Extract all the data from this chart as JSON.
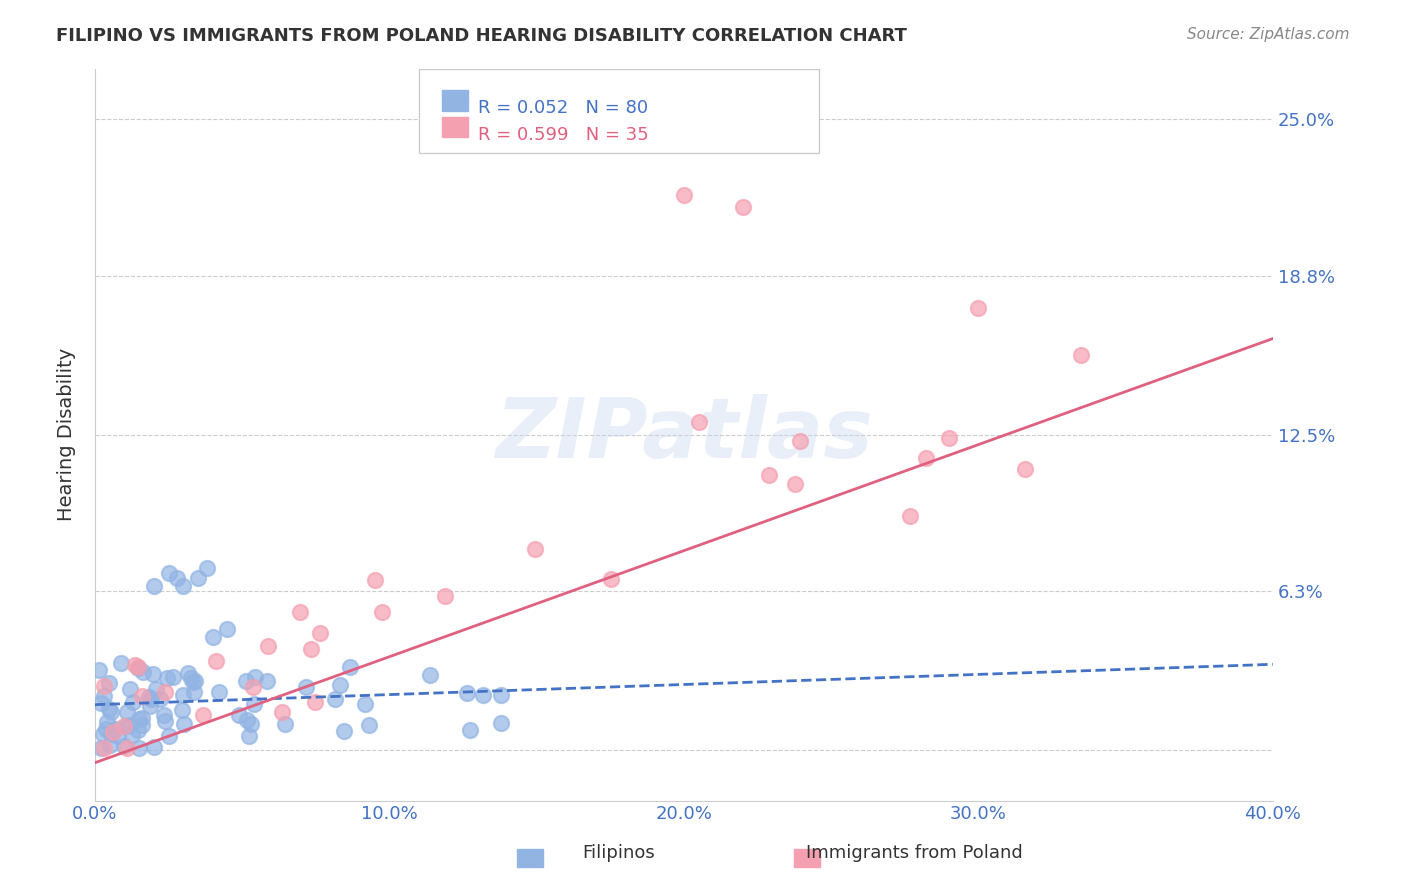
{
  "title": "FILIPINO VS IMMIGRANTS FROM POLAND HEARING DISABILITY CORRELATION CHART",
  "source": "Source: ZipAtlas.com",
  "ylabel": "Hearing Disability",
  "xlabel": "",
  "xlim": [
    0.0,
    40.0
  ],
  "ylim": [
    -2.0,
    27.0
  ],
  "ytick_vals": [
    0.0,
    6.3,
    12.5,
    18.8,
    25.0
  ],
  "ytick_labels": [
    "",
    "6.3%",
    "12.5%",
    "18.8%",
    "25.0%"
  ],
  "xticks": [
    0.0,
    10.0,
    20.0,
    30.0,
    40.0
  ],
  "xtick_labels": [
    "0.0%",
    "10.0%",
    "20.0%",
    "30.0%",
    "40.0%"
  ],
  "grid_color": "#cccccc",
  "background_color": "#ffffff",
  "filipinos": {
    "label": "Filipinos",
    "R": 0.052,
    "N": 80,
    "color": "#92b4e3",
    "line_color": "#4472c4",
    "line_style": "--"
  },
  "poland": {
    "label": "Immigrants from Poland",
    "R": 0.599,
    "N": 35,
    "color": "#f4a0b0",
    "line_color": "#e06080",
    "line_style": "-"
  },
  "watermark": "ZIPatlas",
  "fil_slope": 0.04,
  "fil_intercept": 1.8,
  "pol_slope": 0.42,
  "pol_intercept": -0.5
}
